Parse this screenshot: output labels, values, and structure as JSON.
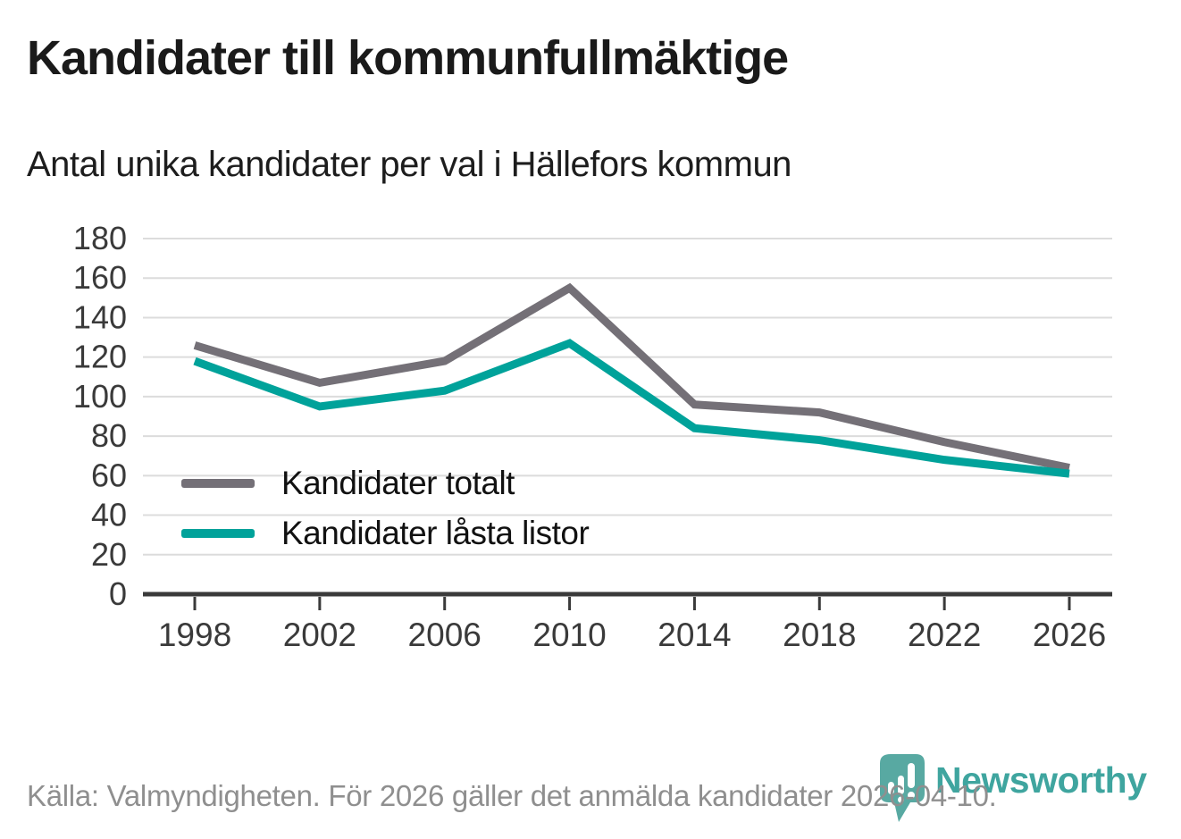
{
  "header": {
    "title": "Kandidater till kommunfullmäktige",
    "subtitle": "Antal unika kandidater per val i Hällefors kommun"
  },
  "chart_data": {
    "type": "line",
    "title": "Kandidater till kommunfullmäktige",
    "subtitle": "Antal unika kandidater per val i Hällefors kommun",
    "x": [
      1998,
      2002,
      2006,
      2010,
      2014,
      2018,
      2022,
      2026
    ],
    "series": [
      {
        "name": "Kandidater totalt",
        "color": "#747077",
        "values": [
          126,
          107,
          118,
          155,
          96,
          92,
          77,
          64
        ]
      },
      {
        "name": "Kandidater låsta listor",
        "color": "#00a29a",
        "values": [
          118,
          95,
          103,
          127,
          84,
          78,
          68,
          61
        ]
      }
    ],
    "xlabel": "",
    "ylabel": "",
    "ylim": [
      0,
      180
    ],
    "ytick_step": 20,
    "yticks": [
      0,
      20,
      40,
      60,
      80,
      100,
      120,
      140,
      160,
      180
    ],
    "grid": "horizontal-light",
    "legend_position": "inside-bottom-left"
  },
  "footer": {
    "source": "Källa: Valmyndigheten. För 2026 gäller det anmälda kandidater 2026-04-10.",
    "brand": "Newsworthy"
  },
  "colors": {
    "series_total": "#747077",
    "series_locked": "#00a29a",
    "gridline": "#dcdcdc",
    "axis": "#3a3a3a",
    "tick_label": "#3a3a3a",
    "title_text": "#1a1a1a",
    "source_text": "#8f8f8f",
    "brand_teal": "#2f9e97"
  }
}
